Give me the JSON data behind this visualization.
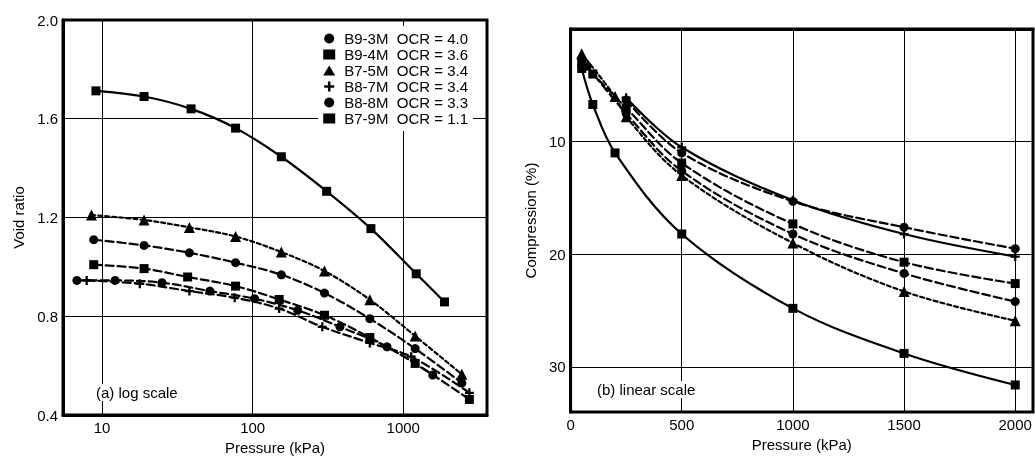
{
  "chart_data": [
    {
      "type": "line",
      "xlabel": "Pressure (kPa)",
      "ylabel": "Void ratio",
      "log": "x",
      "xlim": [
        5.5,
        3600
      ],
      "xticks": [
        10,
        100,
        1000
      ],
      "ylim": [
        0.4,
        2.0
      ],
      "yticks": [
        0.4,
        0.8,
        1.2,
        1.6,
        {
          "value": 2.0,
          "label": "2.0"
        }
      ],
      "grid": true,
      "legend": "top right",
      "annotations": [
        "(a) log scale"
      ],
      "series": [
        {
          "name": "B9-3M  OCR = 4.0",
          "color": "#000000",
          "marker": "circle",
          "line_style": "dashed",
          "x": [
            6.8,
            12.2,
            25,
            52,
            103,
            199,
            380,
            780,
            1570
          ],
          "values": [
            0.945,
            0.945,
            0.936,
            0.902,
            0.871,
            0.824,
            0.757,
            0.676,
            0.562
          ]
        },
        {
          "name": "B9-4M  OCR = 3.6",
          "color": "#000000",
          "marker": "square",
          "line_style": "dashed",
          "x": [
            8.8,
            19,
            37,
            77,
            150,
            300,
            600,
            1200,
            2750
          ],
          "values": [
            1.009,
            0.993,
            0.959,
            0.922,
            0.868,
            0.804,
            0.714,
            0.609,
            0.463
          ]
        },
        {
          "name": "B7-5M  OCR = 3.4",
          "color": "#000000",
          "marker": "triangle",
          "line_style": "dotted",
          "x": [
            8.5,
            19,
            38,
            77,
            155,
            300,
            600,
            1200,
            2450
          ],
          "values": [
            1.21,
            1.19,
            1.16,
            1.123,
            1.06,
            0.983,
            0.867,
            0.72,
            0.565
          ]
        },
        {
          "name": "B8-7M  OCR = 3.4",
          "color": "#000000",
          "marker": "cross",
          "line_style": "dashed",
          "x": [
            7.9,
            17.8,
            38,
            76,
            150,
            290,
            600,
            1130,
            2750
          ],
          "values": [
            0.945,
            0.932,
            0.902,
            0.875,
            0.831,
            0.757,
            0.692,
            0.636,
            0.49
          ]
        },
        {
          "name": "B8-8M  OCR = 3.3",
          "color": "#000000",
          "marker": "circle",
          "line_style": "dashed",
          "x": [
            8.8,
            19,
            38,
            77,
            155,
            300,
            600,
            1200,
            2450
          ],
          "values": [
            1.11,
            1.087,
            1.057,
            1.017,
            0.968,
            0.894,
            0.79,
            0.669,
            0.53
          ]
        },
        {
          "name": "B7-9M  OCR = 1.1",
          "color": "#000000",
          "marker": "square",
          "line_style": "solid",
          "x": [
            9.1,
            19,
            39,
            77,
            155,
            310,
            610,
            1220,
            1880
          ],
          "values": [
            1.713,
            1.69,
            1.64,
            1.562,
            1.446,
            1.306,
            1.155,
            0.972,
            0.858
          ]
        }
      ]
    },
    {
      "type": "line",
      "xlabel": "Pressure (kPa)",
      "ylabel": "Compression (%)",
      "xlim": [
        0,
        2080
      ],
      "xticks": [
        0,
        500,
        1000,
        1500,
        2000
      ],
      "ylim": [
        34,
        0
      ],
      "yticks": [
        10,
        20,
        30
      ],
      "grid": true,
      "annotations": [
        "(b) linear scale"
      ],
      "series": [
        {
          "color": "#000000",
          "marker": "circle",
          "line_style": "dashed",
          "x": [
            250,
            500,
            1000,
            1500,
            2000
          ],
          "values": [
            6.3,
            11.0,
            15.3,
            17.6,
            19.5
          ]
        },
        {
          "color": "#000000",
          "marker": "square",
          "line_style": "dashed",
          "x": [
            50,
            100,
            250,
            500,
            1000,
            1500,
            2000
          ],
          "values": [
            3.0,
            4.0,
            7.0,
            11.9,
            17.3,
            20.7,
            22.6
          ]
        },
        {
          "color": "#000000",
          "marker": "triangle",
          "line_style": "dotted",
          "x": [
            50,
            200,
            250,
            500,
            1000,
            1500,
            2000
          ],
          "values": [
            2.2,
            6.0,
            7.8,
            13.0,
            19.0,
            23.3,
            25.9
          ]
        },
        {
          "color": "#000000",
          "marker": "cross",
          "line_style": "solid",
          "x": [
            250,
            500,
            1000,
            1500,
            2000
          ],
          "values": [
            6.1,
            10.5,
            15.2,
            18.2,
            20.2
          ]
        },
        {
          "color": "#000000",
          "marker": "circle",
          "line_style": "dashed",
          "x": [
            75,
            250,
            500,
            1000,
            1500,
            2000
          ],
          "values": [
            3.3,
            7.5,
            12.6,
            18.2,
            21.7,
            24.2
          ]
        },
        {
          "color": "#000000",
          "marker": "square",
          "line_style": "solid",
          "x": [
            50,
            100,
            200,
            500,
            1000,
            1500,
            2000
          ],
          "values": [
            3.5,
            6.7,
            11.0,
            18.2,
            24.8,
            28.8,
            31.6
          ]
        }
      ]
    }
  ]
}
